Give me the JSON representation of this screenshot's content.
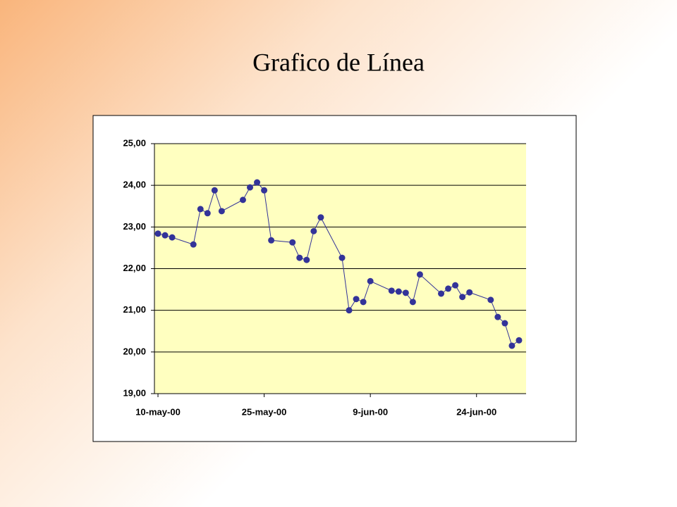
{
  "chart_data": {
    "type": "line",
    "title": "Grafico de Línea",
    "x": [
      "2000-05-10",
      "2000-05-11",
      "2000-05-12",
      "2000-05-15",
      "2000-05-16",
      "2000-05-17",
      "2000-05-18",
      "2000-05-19",
      "2000-05-22",
      "2000-05-23",
      "2000-05-24",
      "2000-05-25",
      "2000-05-26",
      "2000-05-29",
      "2000-05-30",
      "2000-05-31",
      "2000-06-01",
      "2000-06-02",
      "2000-06-05",
      "2000-06-06",
      "2000-06-07",
      "2000-06-08",
      "2000-06-09",
      "2000-06-12",
      "2000-06-13",
      "2000-06-14",
      "2000-06-15",
      "2000-06-16",
      "2000-06-19",
      "2000-06-20",
      "2000-06-21",
      "2000-06-22",
      "2000-06-23",
      "2000-06-26",
      "2000-06-27",
      "2000-06-28",
      "2000-06-29",
      "2000-06-30"
    ],
    "values": [
      22.84,
      22.8,
      22.75,
      22.58,
      23.43,
      23.33,
      23.88,
      23.38,
      23.65,
      23.95,
      24.07,
      23.88,
      22.68,
      22.63,
      22.26,
      22.21,
      22.9,
      23.23,
      22.26,
      21.0,
      21.27,
      21.2,
      21.7,
      21.47,
      21.45,
      21.42,
      21.2,
      21.86,
      21.4,
      21.52,
      21.6,
      21.32,
      21.43,
      21.25,
      20.84,
      20.69,
      20.15,
      20.28
    ],
    "color": "#333399",
    "xlim": [
      "2000-05-09T12:00:00Z",
      "2000-07-01T00:00:00Z"
    ],
    "xticks": [
      {
        "value": "2000-05-10",
        "label": "10-may-00"
      },
      {
        "value": "2000-05-25",
        "label": "25-may-00"
      },
      {
        "value": "2000-06-09",
        "label": "9-jun-00"
      },
      {
        "value": "2000-06-24",
        "label": "24-jun-00"
      }
    ],
    "ylim": [
      19,
      25
    ],
    "yticks": [
      {
        "value": 19,
        "label": "19,00"
      },
      {
        "value": 20,
        "label": "20,00"
      },
      {
        "value": 21,
        "label": "21,00"
      },
      {
        "value": 22,
        "label": "22,00"
      },
      {
        "value": 23,
        "label": "23,00"
      },
      {
        "value": 24,
        "label": "24,00"
      },
      {
        "value": 25,
        "label": "25,00"
      }
    ],
    "grid": true
  }
}
